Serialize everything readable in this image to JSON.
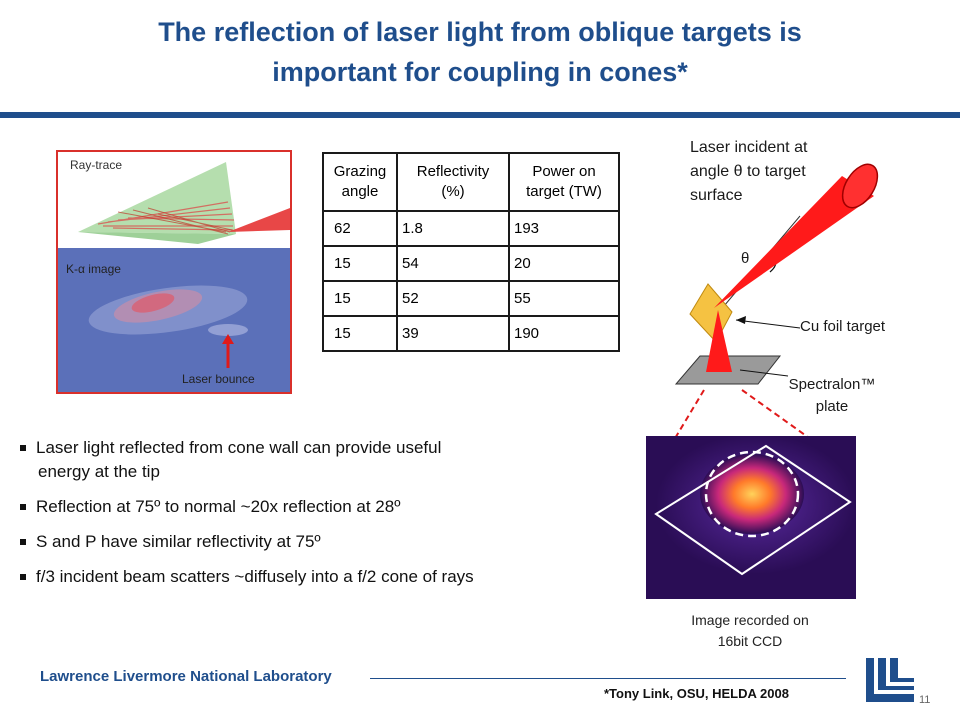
{
  "slide": {
    "title_line1": "The reflection of laser light from oblique targets is",
    "title_line2": "important for coupling in cones*"
  },
  "left_panel": {
    "raytrace_label": "Ray-trace",
    "kalpha_label": "K-α  image",
    "bounce_label": "Laser bounce"
  },
  "table": {
    "headers": [
      {
        "line1": "Grazing",
        "line2": "angle"
      },
      {
        "line1": "Reflectivity",
        "line2": "(%)"
      },
      {
        "line1": "Power on",
        "line2": "target (TW)"
      }
    ],
    "rows": [
      [
        "62",
        "1.8",
        "193"
      ],
      [
        "15",
        "54",
        "20"
      ],
      [
        "15",
        "52",
        "55"
      ],
      [
        "15",
        "39",
        "190"
      ]
    ]
  },
  "diagram": {
    "incident_line1": "Laser incident at",
    "incident_line2": "angle θ to target",
    "incident_line3": "surface",
    "theta": "θ",
    "cu_label": "Cu foil target",
    "spectralon_line1": "Spectralon™",
    "spectralon_line2": "plate"
  },
  "bullets": [
    {
      "line1": "Laser light reflected from cone wall can provide useful",
      "line2": "energy at the tip"
    },
    {
      "line1": "Reflection at 75º to normal ~20x reflection at 28º",
      "line2": ""
    },
    {
      "line1": "S and P have similar reflectivity at 75º",
      "line2": ""
    },
    {
      "line1": "f/3 incident beam scatters ~diffusely into a f/2 cone of rays",
      "line2": ""
    }
  ],
  "ccd": {
    "caption_line1": "Image recorded on",
    "caption_line2": "16bit CCD"
  },
  "footer": {
    "lab_name": "Lawrence Livermore National Laboratory",
    "credit": "*Tony Link, OSU,  HELDA 2008",
    "page_number": "11"
  },
  "colors": {
    "title_blue": "#1f4e8c",
    "laser_red": "#ff1a1a",
    "panel_border": "#d9302b"
  }
}
